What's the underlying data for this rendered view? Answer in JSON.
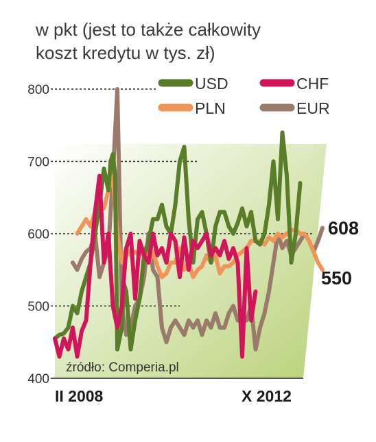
{
  "chart_data": {
    "type": "line",
    "title_lines": [
      "w pkt (jest to także całkowity",
      "koszt kredytu w tys. zł)"
    ],
    "ylim": [
      400,
      800
    ],
    "y_ticks": [
      "400",
      "500",
      "600",
      "700",
      "800"
    ],
    "x_labels": {
      "start": "II 2008",
      "end": "X 2012"
    },
    "source": "źródło: Comperia.pl",
    "end_labels": {
      "eur": "608",
      "pln": "550"
    },
    "colors": {
      "usd": "#5a7d2a",
      "chf": "#d0155a",
      "pln": "#f0955a",
      "eur": "#9a7a6a",
      "band_light": "#ffffff",
      "band_dark": "#b9d279"
    },
    "legend": [
      {
        "key": "usd",
        "label": "USD"
      },
      {
        "key": "chf",
        "label": "CHF"
      },
      {
        "key": "pln",
        "label": "PLN"
      },
      {
        "key": "eur",
        "label": "EUR"
      }
    ],
    "series": [
      {
        "name": "USD",
        "key": "usd",
        "points": [
          [
            0,
            455
          ],
          [
            2,
            460
          ],
          [
            4,
            462
          ],
          [
            6,
            470
          ],
          [
            8,
            500
          ],
          [
            10,
            490
          ],
          [
            12,
            520
          ],
          [
            14,
            540
          ],
          [
            16,
            560
          ],
          [
            18,
            600
          ],
          [
            20,
            640
          ],
          [
            22,
            690
          ],
          [
            24,
            660
          ],
          [
            25,
            700
          ],
          [
            26,
            710
          ],
          [
            27,
            680
          ],
          [
            28,
            440
          ],
          [
            30,
            470
          ],
          [
            31,
            530
          ],
          [
            32,
            520
          ],
          [
            34,
            440
          ],
          [
            36,
            480
          ],
          [
            38,
            510
          ],
          [
            40,
            570
          ],
          [
            42,
            590
          ],
          [
            44,
            620
          ],
          [
            46,
            620
          ],
          [
            48,
            640
          ],
          [
            50,
            610
          ],
          [
            52,
            600
          ],
          [
            54,
            640
          ],
          [
            56,
            700
          ],
          [
            58,
            720
          ],
          [
            60,
            620
          ],
          [
            62,
            560
          ],
          [
            64,
            620
          ],
          [
            66,
            630
          ],
          [
            68,
            600
          ],
          [
            70,
            560
          ],
          [
            72,
            610
          ],
          [
            74,
            630
          ],
          [
            76,
            630
          ],
          [
            78,
            610
          ],
          [
            80,
            600
          ],
          [
            82,
            615
          ],
          [
            84,
            635
          ],
          [
            86,
            610
          ],
          [
            88,
            630
          ],
          [
            90,
            590
          ],
          [
            92,
            585
          ],
          [
            94,
            600
          ],
          [
            96,
            640
          ],
          [
            98,
            700
          ],
          [
            100,
            620
          ],
          [
            102,
            740
          ],
          [
            104,
            680
          ],
          [
            106,
            560
          ],
          [
            108,
            600
          ],
          [
            110,
            670
          ]
        ]
      },
      {
        "name": "CHF",
        "key": "chf",
        "points": [
          [
            0,
            455
          ],
          [
            2,
            430
          ],
          [
            4,
            455
          ],
          [
            6,
            440
          ],
          [
            8,
            470
          ],
          [
            10,
            430
          ],
          [
            12,
            465
          ],
          [
            14,
            480
          ],
          [
            16,
            560
          ],
          [
            18,
            630
          ],
          [
            20,
            680
          ],
          [
            22,
            560
          ],
          [
            24,
            600
          ],
          [
            26,
            500
          ],
          [
            28,
            470
          ],
          [
            30,
            500
          ],
          [
            32,
            580
          ],
          [
            34,
            600
          ],
          [
            36,
            510
          ],
          [
            38,
            590
          ],
          [
            40,
            570
          ],
          [
            42,
            560
          ],
          [
            44,
            600
          ],
          [
            46,
            570
          ],
          [
            48,
            580
          ],
          [
            50,
            560
          ],
          [
            52,
            600
          ],
          [
            54,
            590
          ],
          [
            56,
            540
          ],
          [
            58,
            595
          ],
          [
            60,
            550
          ],
          [
            62,
            590
          ],
          [
            64,
            580
          ],
          [
            66,
            590
          ],
          [
            68,
            600
          ],
          [
            70,
            570
          ],
          [
            72,
            580
          ],
          [
            74,
            570
          ],
          [
            76,
            590
          ],
          [
            78,
            565
          ],
          [
            80,
            580
          ],
          [
            82,
            560
          ],
          [
            84,
            430
          ],
          [
            86,
            580
          ],
          [
            88,
            480
          ],
          [
            90,
            520
          ]
        ]
      },
      {
        "name": "PLN",
        "key": "pln",
        "points": [
          [
            10,
            600
          ],
          [
            12,
            610
          ],
          [
            14,
            620
          ],
          [
            16,
            610
          ],
          [
            18,
            630
          ],
          [
            20,
            640
          ],
          [
            22,
            635
          ],
          [
            24,
            660
          ],
          [
            26,
            680
          ],
          [
            28,
            600
          ],
          [
            30,
            560
          ],
          [
            32,
            580
          ],
          [
            34,
            570
          ],
          [
            36,
            575
          ],
          [
            38,
            570
          ],
          [
            40,
            580
          ],
          [
            42,
            560
          ],
          [
            44,
            575
          ],
          [
            46,
            555
          ],
          [
            48,
            540
          ],
          [
            50,
            545
          ],
          [
            52,
            560
          ],
          [
            54,
            560
          ],
          [
            56,
            580
          ],
          [
            58,
            550
          ],
          [
            60,
            560
          ],
          [
            62,
            540
          ],
          [
            64,
            550
          ],
          [
            66,
            555
          ],
          [
            68,
            570
          ],
          [
            70,
            560
          ],
          [
            72,
            570
          ],
          [
            74,
            545
          ],
          [
            76,
            555
          ],
          [
            78,
            555
          ],
          [
            80,
            560
          ],
          [
            82,
            570
          ],
          [
            84,
            575
          ],
          [
            86,
            580
          ],
          [
            88,
            590
          ],
          [
            90,
            590
          ],
          [
            92,
            590
          ],
          [
            94,
            585
          ],
          [
            96,
            595
          ],
          [
            98,
            590
          ],
          [
            100,
            600
          ],
          [
            102,
            595
          ],
          [
            104,
            600
          ],
          [
            106,
            605
          ],
          [
            108,
            605
          ],
          [
            110,
            600
          ],
          [
            112,
            600
          ],
          [
            114,
            590
          ],
          [
            116,
            575
          ],
          [
            118,
            560
          ],
          [
            120,
            550
          ]
        ]
      },
      {
        "name": "EUR",
        "key": "eur",
        "points": [
          [
            8,
            560
          ],
          [
            10,
            550
          ],
          [
            12,
            565
          ],
          [
            14,
            575
          ],
          [
            16,
            580
          ],
          [
            18,
            600
          ],
          [
            20,
            540
          ],
          [
            22,
            560
          ],
          [
            24,
            580
          ],
          [
            26,
            680
          ],
          [
            28,
            800
          ],
          [
            30,
            500
          ],
          [
            32,
            460
          ],
          [
            34,
            470
          ],
          [
            36,
            500
          ],
          [
            38,
            510
          ],
          [
            40,
            540
          ],
          [
            42,
            600
          ],
          [
            44,
            550
          ],
          [
            46,
            540
          ],
          [
            48,
            470
          ],
          [
            50,
            450
          ],
          [
            52,
            470
          ],
          [
            54,
            480
          ],
          [
            56,
            470
          ],
          [
            58,
            460
          ],
          [
            60,
            480
          ],
          [
            62,
            470
          ],
          [
            64,
            480
          ],
          [
            66,
            460
          ],
          [
            68,
            480
          ],
          [
            70,
            470
          ],
          [
            72,
            490
          ],
          [
            74,
            470
          ],
          [
            76,
            470
          ],
          [
            78,
            490
          ],
          [
            80,
            500
          ],
          [
            82,
            480
          ],
          [
            84,
            490
          ],
          [
            86,
            480
          ],
          [
            88,
            500
          ],
          [
            90,
            440
          ],
          [
            92,
            470
          ],
          [
            94,
            490
          ],
          [
            96,
            520
          ],
          [
            98,
            560
          ],
          [
            100,
            600
          ],
          [
            102,
            580
          ],
          [
            104,
            590
          ],
          [
            106,
            570
          ],
          [
            108,
            580
          ],
          [
            110,
            590
          ],
          [
            112,
            600
          ],
          [
            114,
            590
          ],
          [
            116,
            575
          ],
          [
            118,
            590
          ],
          [
            120,
            608
          ]
        ]
      }
    ]
  }
}
